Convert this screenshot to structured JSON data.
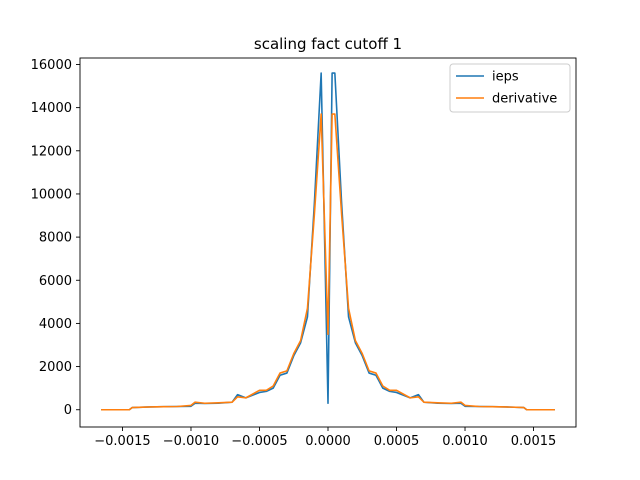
{
  "chart_data": {
    "type": "line",
    "title": "scaling fact cutoff 1",
    "xlabel": "",
    "ylabel": "",
    "xlim": [
      -0.00181,
      0.00181
    ],
    "ylim": [
      -800,
      16300
    ],
    "x_ticks": [
      -0.0015,
      -0.001,
      -0.0005,
      0.0,
      0.0005,
      0.001,
      0.0015
    ],
    "x_tick_labels": [
      "−0.0015",
      "−0.0010",
      "−0.0005",
      "0.0000",
      "0.0005",
      "0.0010",
      "0.0015"
    ],
    "y_ticks": [
      0,
      2000,
      4000,
      6000,
      8000,
      10000,
      12000,
      14000,
      16000
    ],
    "y_tick_labels": [
      "0",
      "2000",
      "4000",
      "6000",
      "8000",
      "10000",
      "12000",
      "14000",
      "16000"
    ],
    "legend_position": "top-right",
    "grid": false,
    "series": [
      {
        "name": "ieps",
        "color": "#1f77b4",
        "x": [
          -0.00165,
          -0.00155,
          -0.00145,
          -0.00143,
          -0.0013,
          -0.0012,
          -0.0011,
          -0.001,
          -0.00097,
          -0.0009,
          -0.0008,
          -0.0007,
          -0.00066,
          -0.0006,
          -0.0005,
          -0.00045,
          -0.0004,
          -0.00035,
          -0.0003,
          -0.00025,
          -0.0002,
          -0.00015,
          -0.0001,
          -5e-05,
          0.0,
          3e-05,
          5e-05,
          0.0001,
          0.00015,
          0.0002,
          0.00025,
          0.0003,
          0.00035,
          0.0004,
          0.00045,
          0.0005,
          0.0006,
          0.00066,
          0.0007,
          0.0008,
          0.0009,
          0.00097,
          0.001,
          0.0011,
          0.0012,
          0.0013,
          0.00143,
          0.00145,
          0.00155,
          0.00165
        ],
        "y": [
          0,
          0,
          0,
          100,
          130,
          140,
          150,
          160,
          300,
          290,
          300,
          350,
          700,
          550,
          800,
          850,
          1000,
          1600,
          1700,
          2500,
          3100,
          4300,
          9500,
          15600,
          300,
          15600,
          15600,
          9500,
          4300,
          3100,
          2500,
          1700,
          1600,
          1000,
          850,
          800,
          550,
          700,
          350,
          300,
          290,
          300,
          160,
          150,
          140,
          130,
          100,
          0,
          0,
          0
        ]
      },
      {
        "name": "derivative",
        "color": "#ff7f0e",
        "x": [
          -0.00165,
          -0.00155,
          -0.00145,
          -0.00143,
          -0.0013,
          -0.0012,
          -0.0011,
          -0.001,
          -0.00097,
          -0.0009,
          -0.0008,
          -0.0007,
          -0.00066,
          -0.0006,
          -0.0005,
          -0.00045,
          -0.0004,
          -0.00035,
          -0.0003,
          -0.00025,
          -0.0002,
          -0.00015,
          -0.0001,
          -5e-05,
          0.0,
          3e-05,
          5e-05,
          0.0001,
          0.00015,
          0.0002,
          0.00025,
          0.0003,
          0.00035,
          0.0004,
          0.00045,
          0.0005,
          0.0006,
          0.00066,
          0.0007,
          0.0008,
          0.0009,
          0.00097,
          0.001,
          0.0011,
          0.0012,
          0.0013,
          0.00143,
          0.00145,
          0.00155,
          0.00165
        ],
        "y": [
          0,
          0,
          0,
          100,
          130,
          140,
          150,
          200,
          350,
          300,
          320,
          350,
          600,
          550,
          900,
          900,
          1100,
          1700,
          1800,
          2600,
          3200,
          4700,
          9000,
          13700,
          3500,
          13700,
          13700,
          9000,
          4700,
          3200,
          2600,
          1800,
          1700,
          1100,
          900,
          900,
          550,
          600,
          350,
          320,
          300,
          350,
          200,
          150,
          140,
          130,
          100,
          0,
          0,
          0
        ]
      }
    ]
  }
}
